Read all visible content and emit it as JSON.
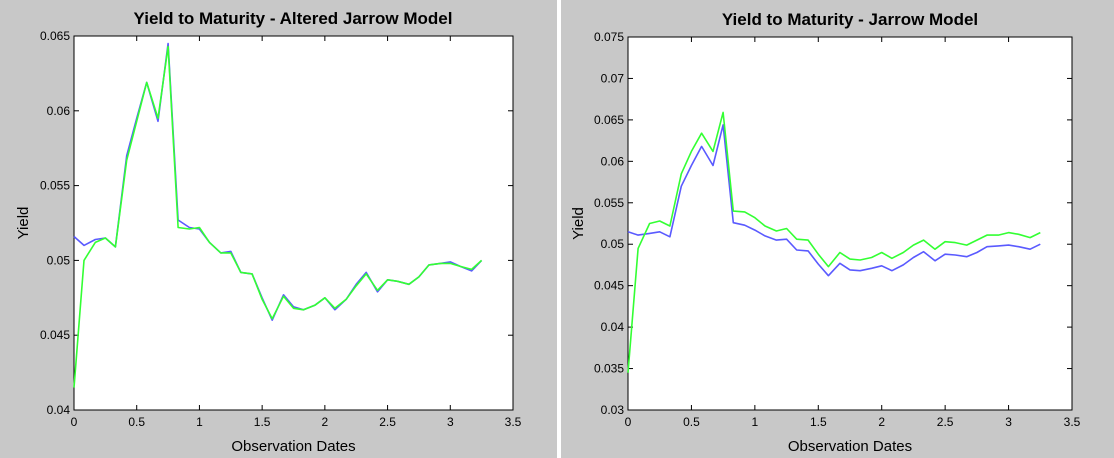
{
  "colors": {
    "figure_background": "#c8c8c8",
    "axes_background": "#ffffff",
    "market_series_color": "#5a5aff",
    "model_series_color": "#33ff33",
    "axis_color": "#000000"
  },
  "chart_data": [
    {
      "type": "line",
      "title": "Yield to Maturity - Altered Jarrow Model",
      "xlabel": "Observation Dates",
      "ylabel": "Yield",
      "xlim": [
        0,
        3.5
      ],
      "ylim": [
        0.04,
        0.065
      ],
      "xticks": [
        "0",
        "0.5",
        "1",
        "1.5",
        "2",
        "2.5",
        "3",
        "3.5"
      ],
      "yticks": [
        "0.04",
        "0.045",
        "0.05",
        "0.055",
        "0.06",
        "0.065"
      ],
      "grid": false,
      "series": [
        {
          "color": "#5a5aff",
          "x": [
            0,
            0.08,
            0.17,
            0.25,
            0.33,
            0.42,
            0.5,
            0.58,
            0.67,
            0.75,
            0.83,
            0.92,
            1.0,
            1.08,
            1.17,
            1.25,
            1.33,
            1.42,
            1.5,
            1.58,
            1.67,
            1.75,
            1.83,
            1.92,
            2.0,
            2.08,
            2.17,
            2.25,
            2.33,
            2.42,
            2.5,
            2.58,
            2.67,
            2.75,
            2.83,
            2.92,
            3.0,
            3.08,
            3.17,
            3.25
          ],
          "y": [
            0.0516,
            0.051,
            0.0514,
            0.0515,
            0.0509,
            0.057,
            0.0595,
            0.0619,
            0.0593,
            0.0645,
            0.0527,
            0.0522,
            0.0521,
            0.0512,
            0.0505,
            0.0506,
            0.0492,
            0.0491,
            0.0475,
            0.046,
            0.0477,
            0.0469,
            0.0467,
            0.047,
            0.0475,
            0.0467,
            0.0474,
            0.0484,
            0.0492,
            0.0479,
            0.0487,
            0.0486,
            0.0484,
            0.0489,
            0.0497,
            0.0498,
            0.0499,
            0.0496,
            0.0493,
            0.05
          ]
        },
        {
          "color": "#33ff33",
          "x": [
            0,
            0.08,
            0.17,
            0.25,
            0.33,
            0.42,
            0.5,
            0.58,
            0.67,
            0.75,
            0.83,
            0.92,
            1.0,
            1.08,
            1.17,
            1.25,
            1.33,
            1.42,
            1.5,
            1.58,
            1.67,
            1.75,
            1.83,
            1.92,
            2.0,
            2.08,
            2.17,
            2.25,
            2.33,
            2.42,
            2.5,
            2.58,
            2.67,
            2.75,
            2.83,
            2.92,
            3.0,
            3.08,
            3.17,
            3.25
          ],
          "y": [
            0.0415,
            0.05,
            0.0512,
            0.0515,
            0.0509,
            0.0567,
            0.0593,
            0.0619,
            0.0595,
            0.0643,
            0.0522,
            0.0521,
            0.0522,
            0.0512,
            0.0505,
            0.0505,
            0.0492,
            0.0491,
            0.0474,
            0.0461,
            0.0476,
            0.0468,
            0.0467,
            0.047,
            0.0475,
            0.0468,
            0.0474,
            0.0483,
            0.0491,
            0.048,
            0.0487,
            0.0486,
            0.0484,
            0.0489,
            0.0497,
            0.0498,
            0.0498,
            0.0496,
            0.0494,
            0.05
          ]
        }
      ]
    },
    {
      "type": "line",
      "title": "Yield to Maturity - Jarrow Model",
      "xlabel": "Observation Dates",
      "ylabel": "Yield",
      "xlim": [
        0,
        3.5
      ],
      "ylim": [
        0.03,
        0.075
      ],
      "xticks": [
        "0",
        "0.5",
        "1",
        "1.5",
        "2",
        "2.5",
        "3",
        "3.5"
      ],
      "yticks": [
        "0.03",
        "0.035",
        "0.04",
        "0.045",
        "0.05",
        "0.055",
        "0.06",
        "0.065",
        "0.07",
        "0.075"
      ],
      "grid": false,
      "series": [
        {
          "color": "#5a5aff",
          "x": [
            0,
            0.08,
            0.17,
            0.25,
            0.33,
            0.42,
            0.5,
            0.58,
            0.67,
            0.75,
            0.83,
            0.92,
            1.0,
            1.08,
            1.17,
            1.25,
            1.33,
            1.42,
            1.5,
            1.58,
            1.67,
            1.75,
            1.83,
            1.92,
            2.0,
            2.08,
            2.17,
            2.25,
            2.33,
            2.42,
            2.5,
            2.58,
            2.67,
            2.75,
            2.83,
            2.92,
            3.0,
            3.08,
            3.17,
            3.25
          ],
          "y": [
            0.0515,
            0.0511,
            0.0513,
            0.0515,
            0.0509,
            0.057,
            0.0595,
            0.0618,
            0.0595,
            0.0644,
            0.0526,
            0.0523,
            0.0517,
            0.051,
            0.0505,
            0.0506,
            0.0493,
            0.0492,
            0.0476,
            0.0462,
            0.0477,
            0.0469,
            0.0468,
            0.0471,
            0.0474,
            0.0468,
            0.0475,
            0.0484,
            0.0491,
            0.048,
            0.0488,
            0.0487,
            0.0485,
            0.049,
            0.0497,
            0.0498,
            0.0499,
            0.0497,
            0.0494,
            0.05
          ]
        },
        {
          "color": "#33ff33",
          "x": [
            0,
            0.08,
            0.17,
            0.25,
            0.33,
            0.42,
            0.5,
            0.58,
            0.67,
            0.75,
            0.83,
            0.92,
            1.0,
            1.08,
            1.17,
            1.25,
            1.33,
            1.42,
            1.5,
            1.58,
            1.67,
            1.75,
            1.83,
            1.92,
            2.0,
            2.08,
            2.17,
            2.25,
            2.33,
            2.42,
            2.5,
            2.58,
            2.67,
            2.75,
            2.83,
            2.92,
            3.0,
            3.08,
            3.17,
            3.25
          ],
          "y": [
            0.0345,
            0.0495,
            0.0525,
            0.0528,
            0.0522,
            0.0585,
            0.0612,
            0.0634,
            0.0612,
            0.0659,
            0.054,
            0.0539,
            0.0532,
            0.0522,
            0.0516,
            0.0519,
            0.0506,
            0.0505,
            0.0488,
            0.0473,
            0.049,
            0.0482,
            0.0481,
            0.0484,
            0.049,
            0.0483,
            0.049,
            0.0499,
            0.0505,
            0.0494,
            0.0503,
            0.0502,
            0.0499,
            0.0505,
            0.0511,
            0.0511,
            0.0514,
            0.0512,
            0.0508,
            0.0514
          ]
        }
      ]
    }
  ]
}
